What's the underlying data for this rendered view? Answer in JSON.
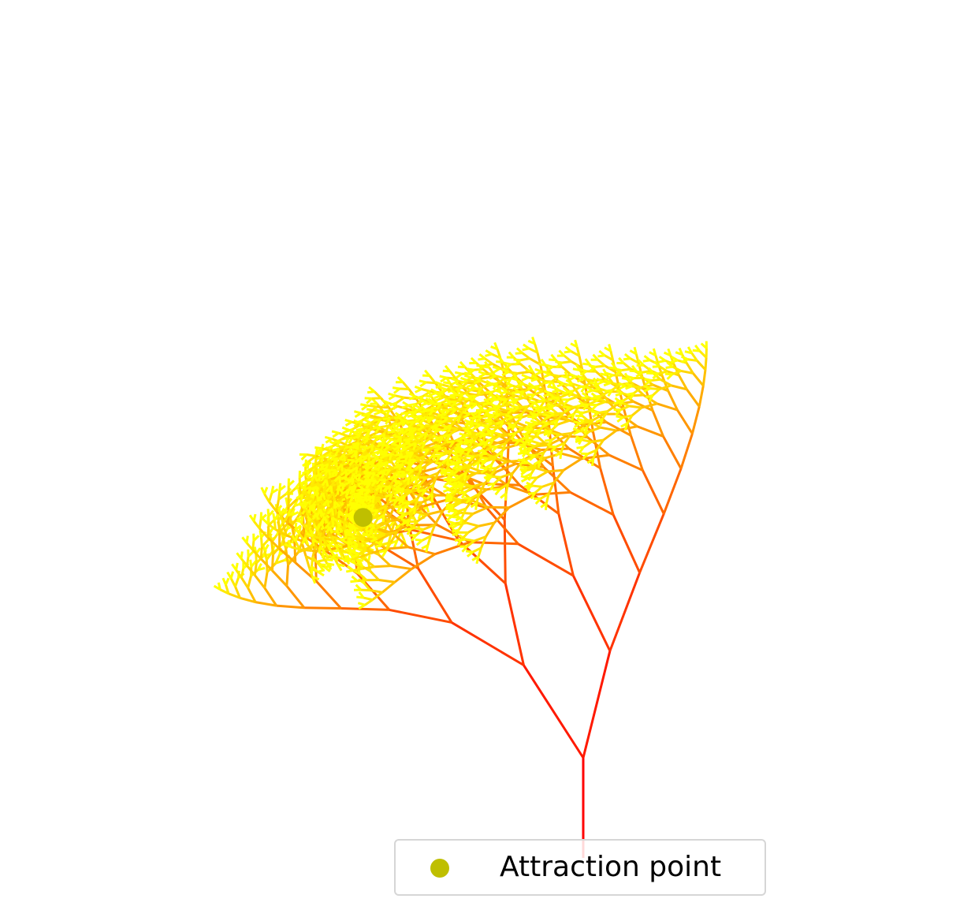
{
  "chart_data": {
    "type": "scatter",
    "title": "",
    "xlabel": "",
    "ylabel": "",
    "axes_visible": false,
    "grid": false,
    "series": [
      {
        "name": "Attraction point",
        "marker": "circle",
        "color": "#bfbf00",
        "points": [
          {
            "x": -2.2,
            "y": 3.4
          }
        ]
      }
    ],
    "tree": {
      "description_from_image": "fractal tree leaning left, branches colored red at trunk to yellow at tips",
      "colormap": [
        "#ff0000",
        "#ff8c00",
        "#ffff00"
      ],
      "trunk_base": {
        "x": 0,
        "y": 0
      },
      "trunk_top": {
        "x": 0,
        "y": 1
      },
      "depth": 11,
      "branch_angle_deg": 30,
      "length_ratio": 0.76,
      "bias_toward_attraction": 0.22
    },
    "legend": {
      "location": "bottom-center",
      "entries": [
        {
          "label": "Attraction point",
          "color": "#bfbf00",
          "marker": "circle"
        }
      ]
    }
  }
}
